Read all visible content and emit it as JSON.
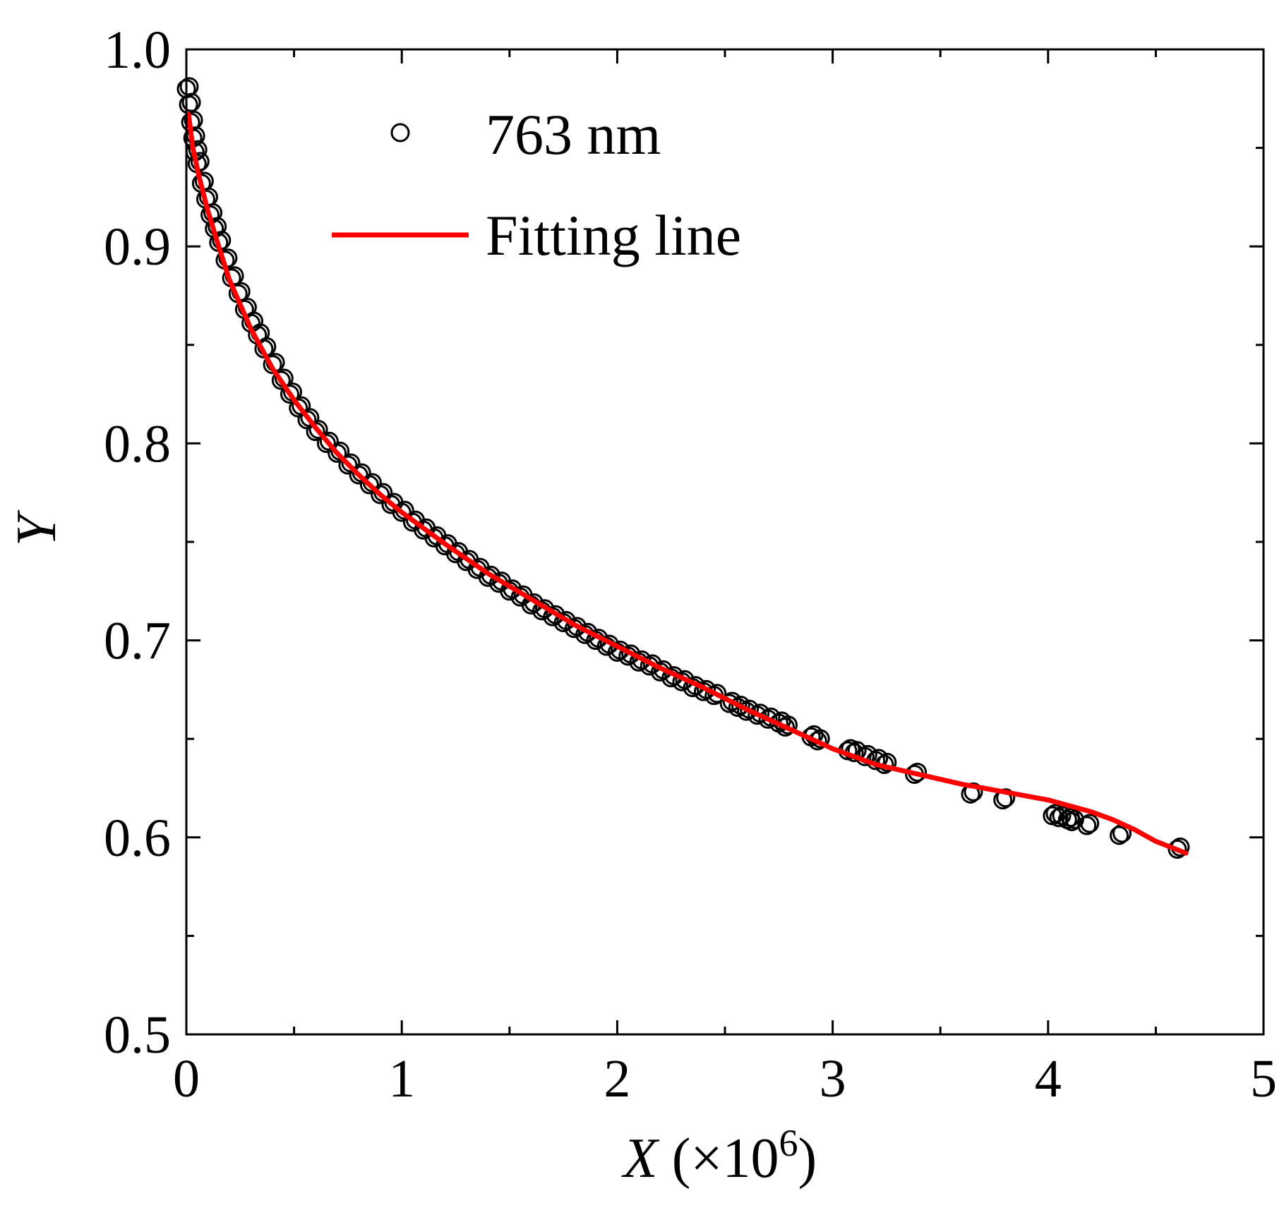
{
  "chart_data": {
    "type": "scatter",
    "title": "",
    "xlabel_italic": "X",
    "xlabel_rest": " (×10",
    "xlabel_exp": "6",
    "xlabel_close": ")",
    "ylabel": "Y",
    "xlim": [
      0,
      5
    ],
    "ylim": [
      0.5,
      1.0
    ],
    "x_ticks": [
      0,
      1,
      2,
      3,
      4,
      5
    ],
    "x_tick_labels": [
      "0",
      "1",
      "2",
      "3",
      "4",
      "5"
    ],
    "y_ticks": [
      0.5,
      0.6,
      0.7,
      0.8,
      0.9,
      1.0
    ],
    "y_tick_labels": [
      "0.5",
      "0.6",
      "0.7",
      "0.8",
      "0.9",
      "1.0"
    ],
    "grid": false,
    "legend": {
      "placement": "top-left",
      "entries": [
        {
          "label": "763 nm",
          "marker": "open-circle"
        },
        {
          "label": "Fitting line",
          "marker": "line"
        }
      ]
    },
    "series": [
      {
        "name": "763 nm",
        "kind": "scatter",
        "marker": "open-circle",
        "color": "#000000",
        "x": [
          0.0,
          0.01,
          0.02,
          0.03,
          0.04,
          0.05,
          0.07,
          0.09,
          0.11,
          0.13,
          0.15,
          0.18,
          0.21,
          0.24,
          0.27,
          0.3,
          0.33,
          0.36,
          0.4,
          0.44,
          0.48,
          0.52,
          0.56,
          0.6,
          0.65,
          0.7,
          0.75,
          0.8,
          0.85,
          0.9,
          0.95,
          1.0,
          1.05,
          1.1,
          1.15,
          1.2,
          1.25,
          1.3,
          1.35,
          1.4,
          1.45,
          1.5,
          1.55,
          1.6,
          1.65,
          1.7,
          1.75,
          1.8,
          1.85,
          1.9,
          1.95,
          2.0,
          2.05,
          2.1,
          2.15,
          2.2,
          2.25,
          2.3,
          2.35,
          2.4,
          2.45,
          2.52,
          2.56,
          2.6,
          2.65,
          2.7,
          2.75,
          2.78,
          2.9,
          2.93,
          3.07,
          3.1,
          3.15,
          3.2,
          3.24,
          3.38,
          3.64,
          3.79,
          4.02,
          4.05,
          4.09,
          4.11,
          4.18,
          4.33,
          4.6
        ],
        "y": [
          0.98,
          0.972,
          0.963,
          0.955,
          0.948,
          0.942,
          0.932,
          0.924,
          0.916,
          0.909,
          0.902,
          0.893,
          0.884,
          0.876,
          0.868,
          0.861,
          0.855,
          0.848,
          0.84,
          0.832,
          0.825,
          0.818,
          0.812,
          0.806,
          0.8,
          0.795,
          0.789,
          0.784,
          0.779,
          0.774,
          0.769,
          0.765,
          0.76,
          0.756,
          0.752,
          0.748,
          0.744,
          0.74,
          0.736,
          0.732,
          0.729,
          0.725,
          0.722,
          0.718,
          0.715,
          0.712,
          0.709,
          0.706,
          0.703,
          0.7,
          0.697,
          0.694,
          0.692,
          0.689,
          0.687,
          0.684,
          0.681,
          0.679,
          0.676,
          0.674,
          0.672,
          0.668,
          0.666,
          0.664,
          0.662,
          0.66,
          0.658,
          0.656,
          0.651,
          0.649,
          0.644,
          0.643,
          0.641,
          0.639,
          0.637,
          0.632,
          0.622,
          0.619,
          0.611,
          0.61,
          0.609,
          0.608,
          0.606,
          0.601,
          0.594
        ]
      },
      {
        "name": "Fitting line",
        "kind": "line",
        "color": "#ff0000",
        "x": [
          0.01,
          0.03,
          0.06,
          0.1,
          0.15,
          0.2,
          0.3,
          0.4,
          0.5,
          0.6,
          0.7,
          0.8,
          0.9,
          1.0,
          1.2,
          1.4,
          1.6,
          1.8,
          2.0,
          2.2,
          2.4,
          2.6,
          2.8,
          3.0,
          3.2,
          3.4,
          3.6,
          3.8,
          4.0,
          4.1,
          4.2,
          4.3,
          4.4,
          4.5,
          4.64
        ],
        "y": [
          0.967,
          0.95,
          0.935,
          0.918,
          0.9,
          0.883,
          0.858,
          0.838,
          0.822,
          0.808,
          0.795,
          0.784,
          0.774,
          0.765,
          0.749,
          0.734,
          0.721,
          0.708,
          0.697,
          0.686,
          0.676,
          0.665,
          0.655,
          0.645,
          0.637,
          0.632,
          0.627,
          0.623,
          0.619,
          0.616,
          0.613,
          0.609,
          0.604,
          0.598,
          0.592
        ]
      }
    ]
  }
}
